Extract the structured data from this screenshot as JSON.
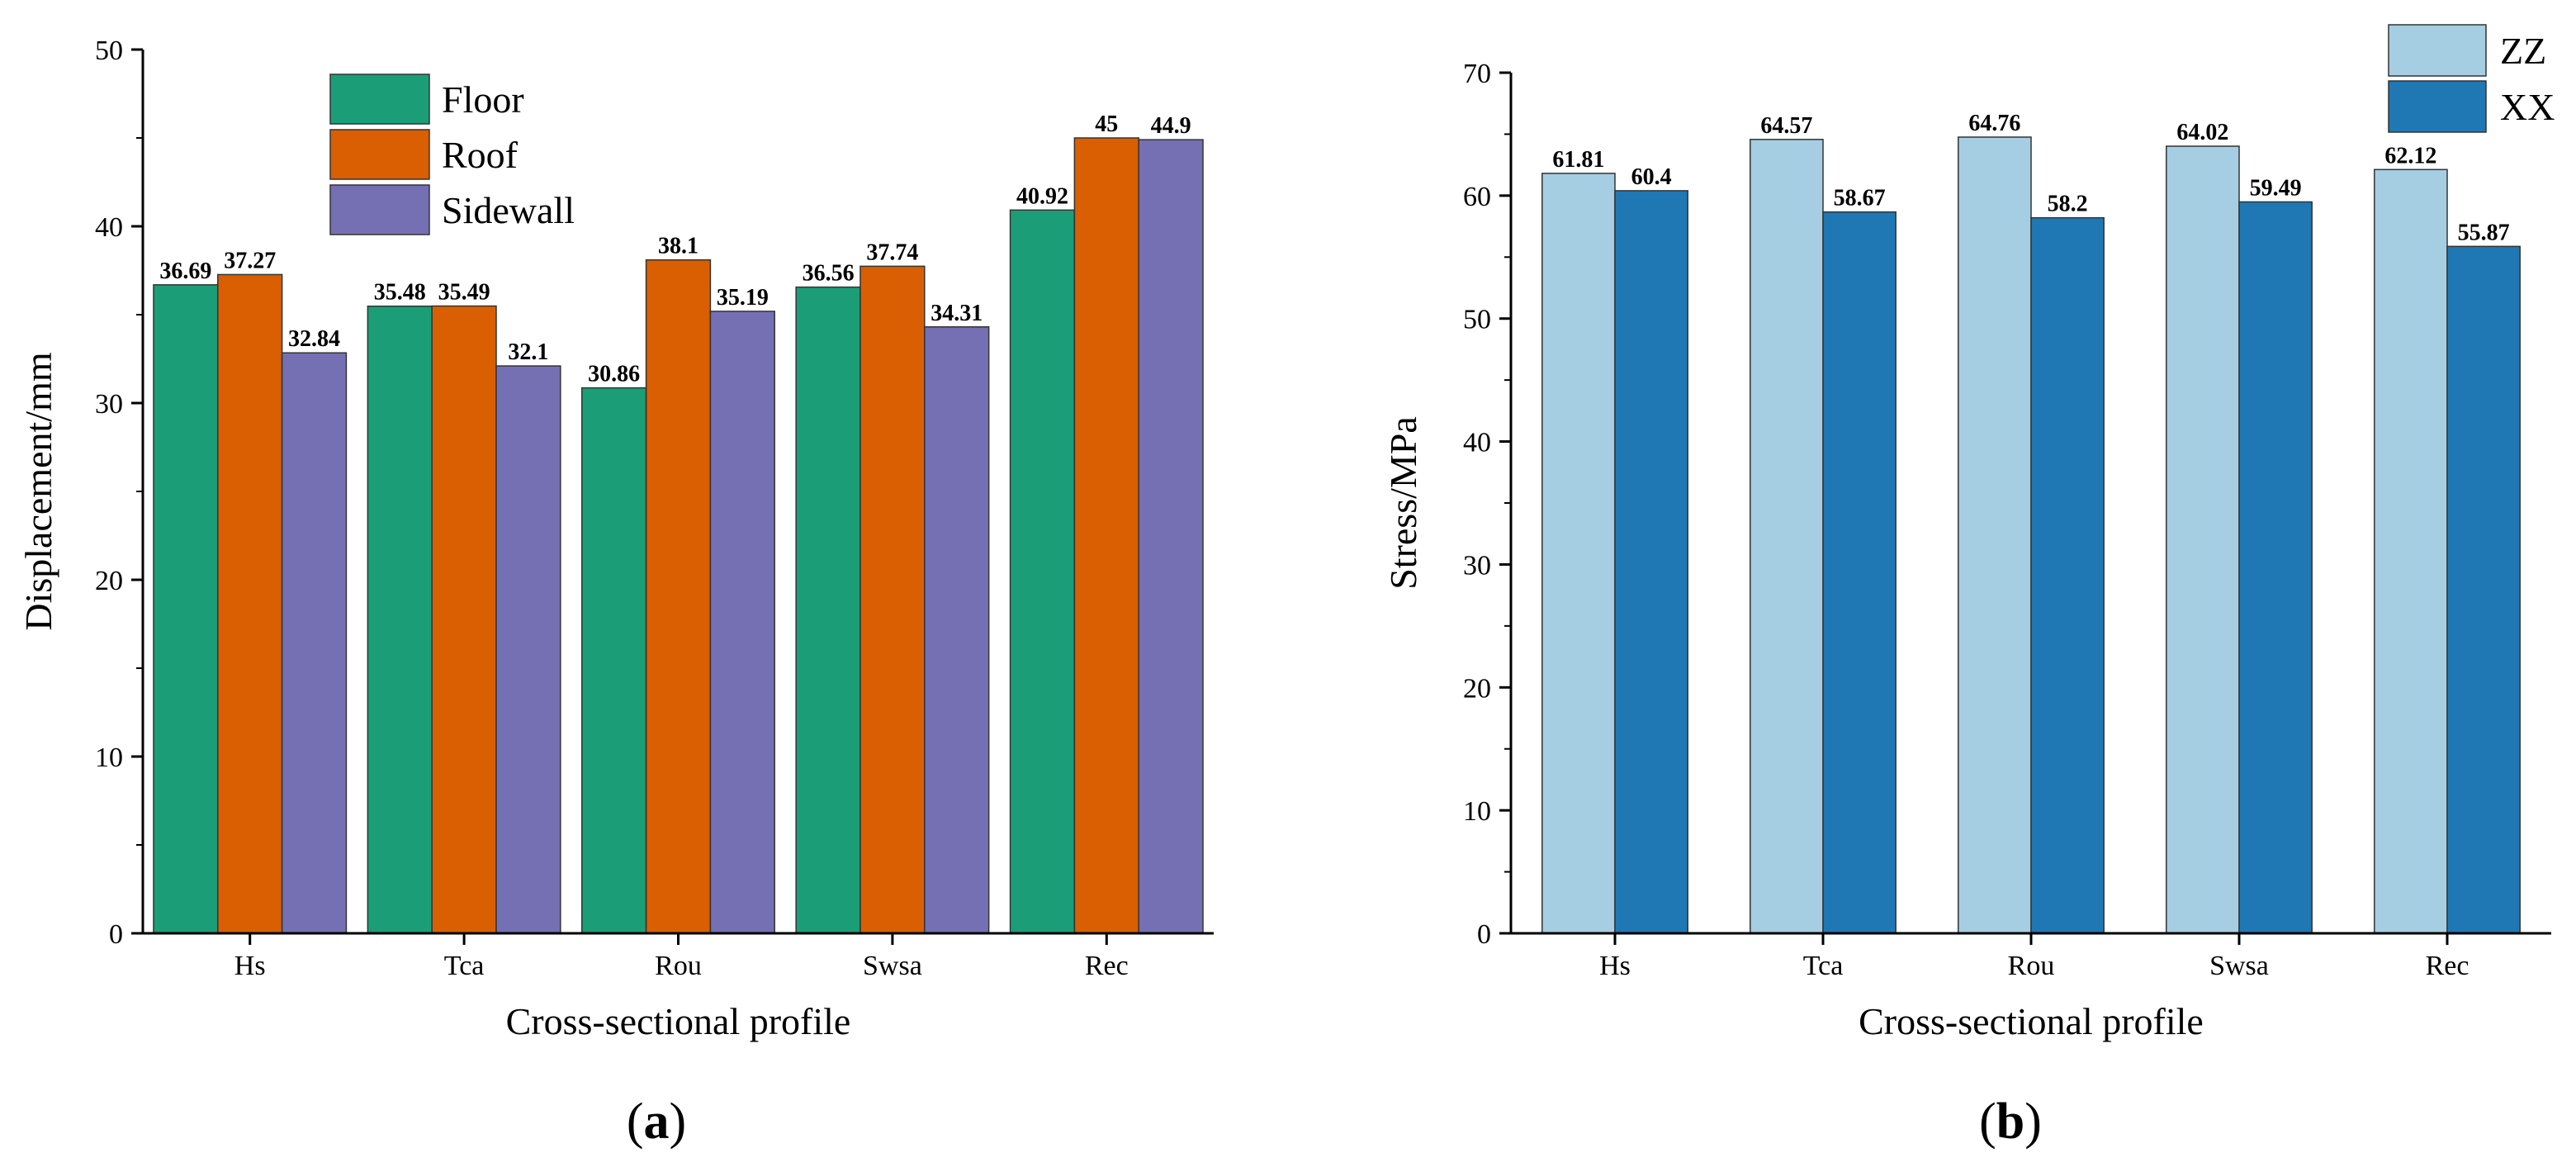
{
  "chart_data": [
    {
      "type": "bar",
      "panel_label": "a",
      "categories": [
        "Hs",
        "Tca",
        "Rou",
        "Swsa",
        "Rec"
      ],
      "series": [
        {
          "name": "Floor",
          "color": "#1b9e77",
          "values": [
            36.69,
            35.48,
            30.86,
            36.56,
            40.92
          ],
          "labels": [
            "36.69",
            "35.48",
            "30.86",
            "36.56",
            "40.92"
          ]
        },
        {
          "name": "Roof",
          "color": "#d95f02",
          "values": [
            37.27,
            35.49,
            38.1,
            37.74,
            45
          ],
          "labels": [
            "37.27",
            "35.49",
            "38.1",
            "37.74",
            "45"
          ]
        },
        {
          "name": "Sidewall",
          "color": "#7570b3",
          "values": [
            32.84,
            32.1,
            35.19,
            34.31,
            44.9
          ],
          "labels": [
            "32.84",
            "32.1",
            "35.19",
            "34.31",
            "44.9"
          ]
        }
      ],
      "xlabel": "Cross-sectional profile",
      "ylabel": "Displacement/mm",
      "ylim": [
        0,
        50
      ],
      "yticks": [
        0,
        10,
        20,
        30,
        40,
        50
      ],
      "legend_position": "top-center",
      "grid": false
    },
    {
      "type": "bar",
      "panel_label": "b",
      "categories": [
        "Hs",
        "Tca",
        "Rou",
        "Swsa",
        "Rec"
      ],
      "series": [
        {
          "name": "ZZ",
          "color": "#a6cee3",
          "values": [
            61.81,
            64.57,
            64.76,
            64.02,
            62.12
          ],
          "labels": [
            "61.81",
            "64.57",
            "64.76",
            "64.02",
            "62.12"
          ]
        },
        {
          "name": "XX",
          "color": "#1f78b4",
          "values": [
            60.4,
            58.67,
            58.2,
            59.49,
            55.87
          ],
          "labels": [
            "60.4",
            "58.67",
            "58.2",
            "59.49",
            "55.87"
          ]
        }
      ],
      "xlabel": "Cross-sectional profile",
      "ylabel": "Stress/MPa",
      "ylim": [
        0,
        70
      ],
      "yticks": [
        0,
        10,
        20,
        30,
        40,
        50,
        60,
        70
      ],
      "legend_position": "top-right",
      "grid": false
    }
  ]
}
